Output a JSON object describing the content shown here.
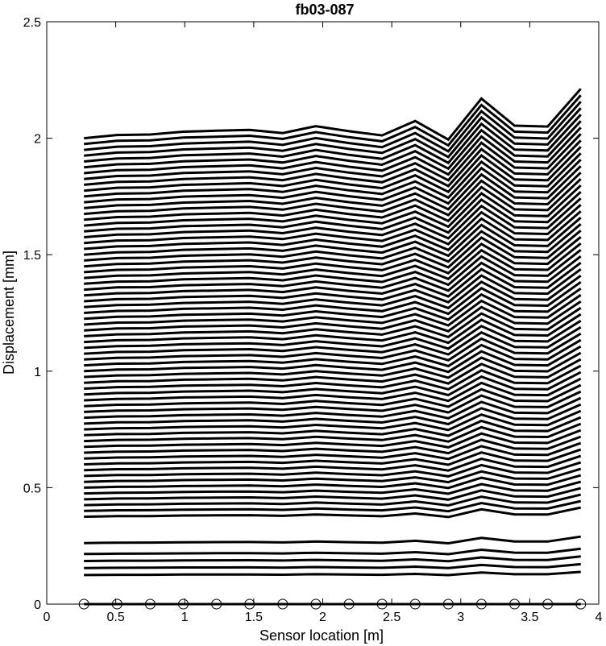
{
  "chart_data": {
    "type": "line",
    "title": "fb03-087",
    "xlabel": "Sensor location [m]",
    "ylabel": "Displacement [mm]",
    "xlim": [
      0,
      4
    ],
    "ylim": [
      0,
      2.5
    ],
    "xticks": [
      0,
      0.5,
      1,
      1.5,
      2,
      2.5,
      3,
      3.5,
      4
    ],
    "xtick_labels": [
      "0",
      "0.5",
      "1",
      "1.5",
      "2",
      "2.5",
      "3",
      "3.5",
      "4"
    ],
    "yticks": [
      0,
      0.5,
      1,
      1.5,
      2,
      2.5
    ],
    "ytick_labels": [
      "0",
      "0.5",
      "1",
      "1.5",
      "2",
      "2.5"
    ],
    "grid": false,
    "legend": "none",
    "line_color": "#000000",
    "marker": "circle-open",
    "x": [
      0.27,
      0.51,
      0.75,
      0.99,
      1.23,
      1.47,
      1.71,
      1.95,
      2.19,
      2.43,
      2.67,
      2.91,
      3.15,
      3.39,
      3.63,
      3.87
    ],
    "base_shape": [
      0.0,
      0.014,
      0.016,
      0.028,
      0.032,
      0.036,
      0.022,
      0.052,
      0.03,
      0.012,
      0.074,
      -0.006,
      0.17,
      0.054,
      0.05,
      0.212
    ],
    "series_levels": [
      0.0,
      0.125,
      0.155,
      0.185,
      0.215,
      0.262,
      0.375,
      0.4,
      0.425,
      0.45,
      0.475,
      0.5,
      0.525,
      0.55,
      0.575,
      0.6,
      0.625,
      0.65,
      0.675,
      0.7,
      0.725,
      0.75,
      0.775,
      0.8,
      0.825,
      0.85,
      0.875,
      0.9,
      0.925,
      0.95,
      0.975,
      1.0,
      1.025,
      1.05,
      1.075,
      1.1,
      1.125,
      1.15,
      1.175,
      1.2,
      1.225,
      1.25,
      1.275,
      1.3,
      1.325,
      1.35,
      1.375,
      1.4,
      1.425,
      1.45,
      1.475,
      1.5,
      1.525,
      1.55,
      1.575,
      1.6,
      1.625,
      1.65,
      1.675,
      1.7,
      1.725,
      1.75,
      1.775,
      1.8,
      1.825,
      1.85,
      1.875,
      1.9,
      1.925,
      1.95,
      1.975,
      2.0
    ],
    "circle_markers_y": 0
  }
}
